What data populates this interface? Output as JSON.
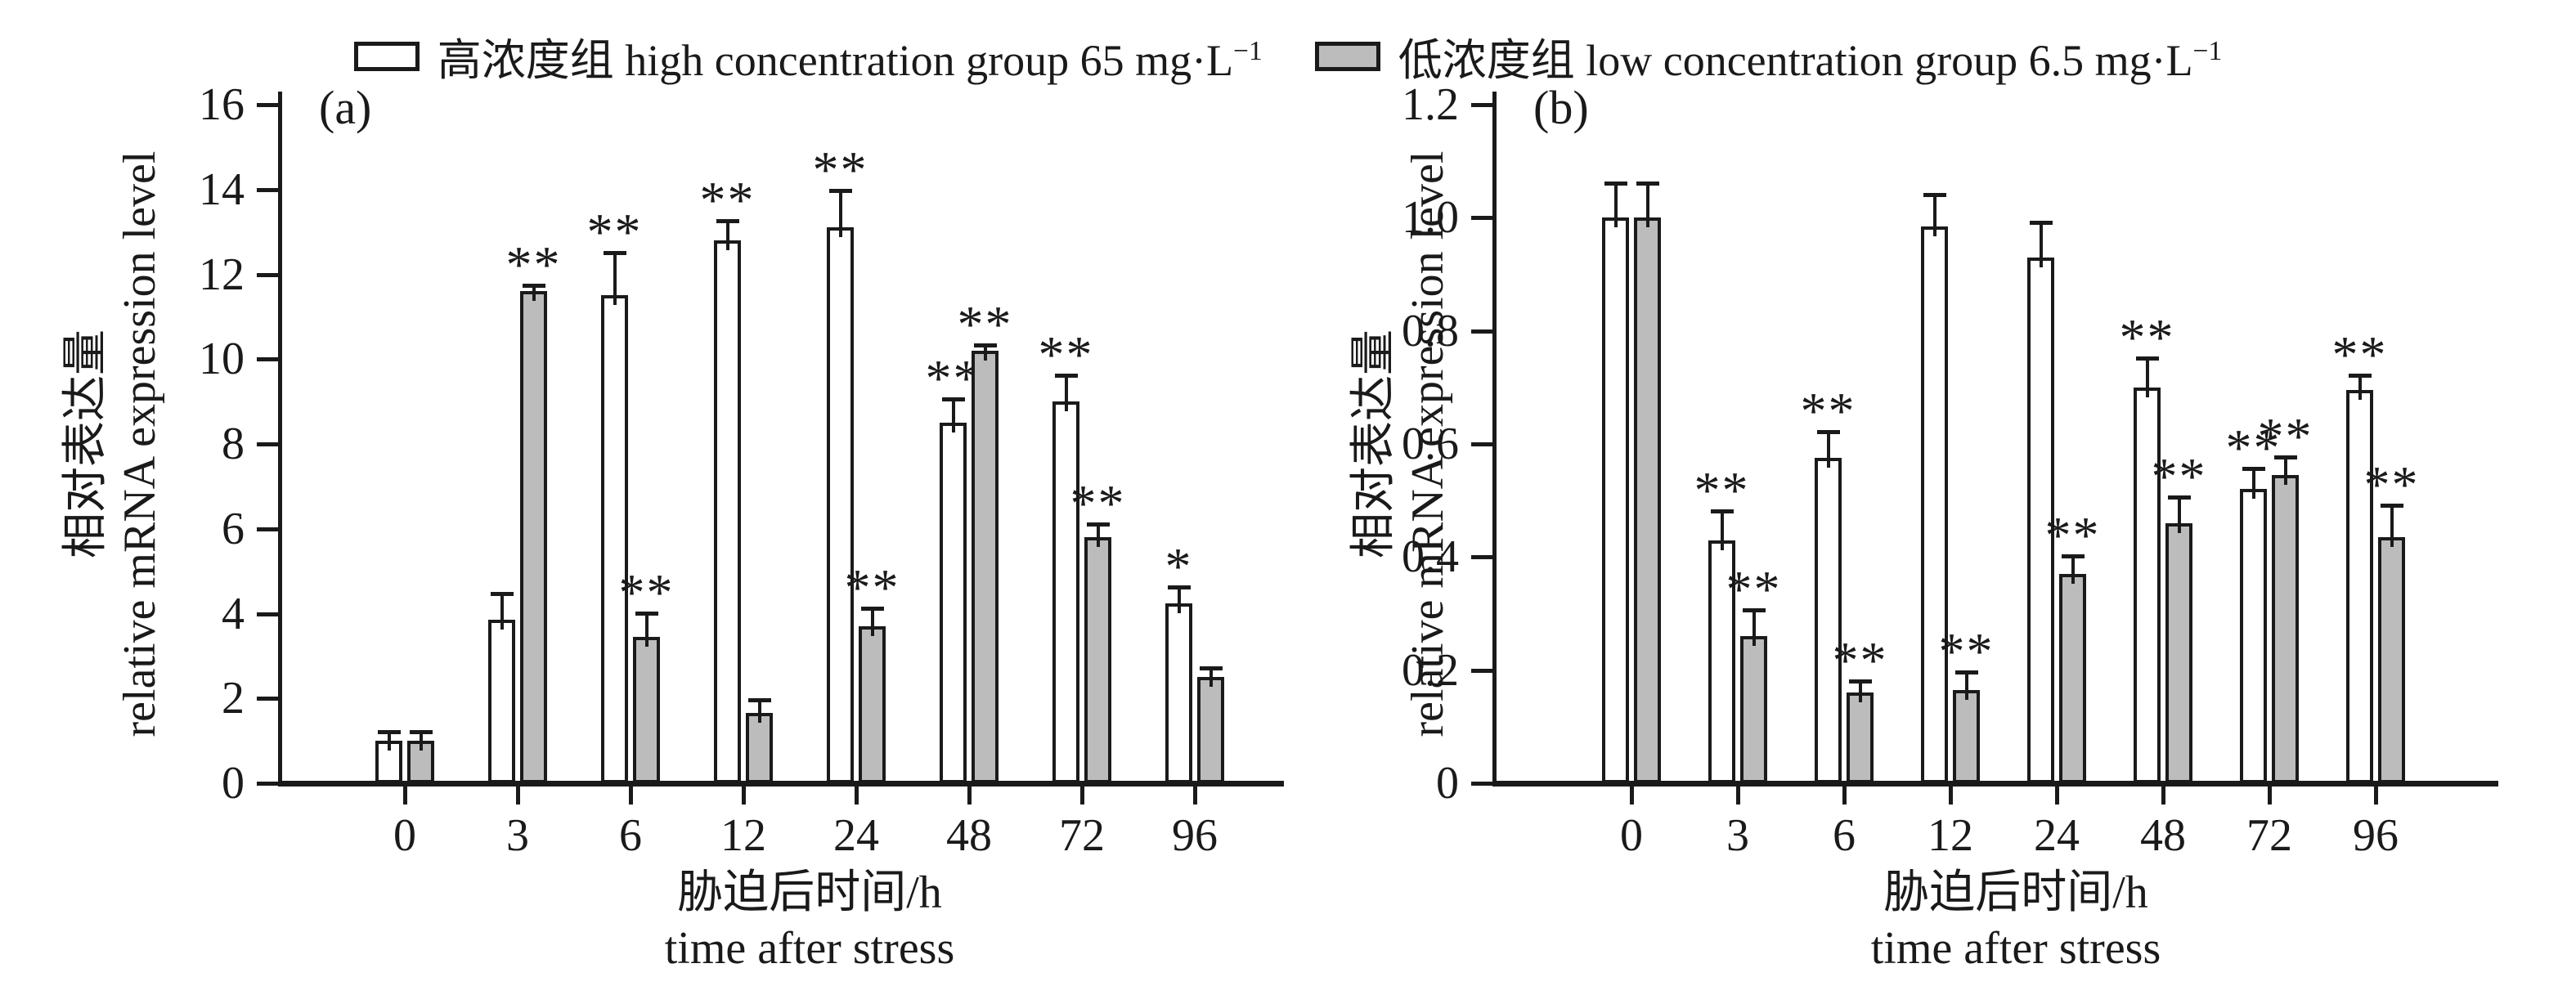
{
  "legend": [
    {
      "label": "高浓度组 high concentration group 65 mg·L",
      "sup": "−1",
      "color": "#ffffff"
    },
    {
      "label": "低浓度组 low concentration group 6.5 mg·L",
      "sup": "−1",
      "color": "#bcbcbc"
    }
  ],
  "chart_data": [
    {
      "type": "bar",
      "panel_label": "(a)",
      "ylabel_zh": "相对表达量",
      "ylabel_en": "relative mRNA expression level",
      "xlabel_zh": "胁迫后时间/h",
      "xlabel_en": "time after stress",
      "categories": [
        "0",
        "3",
        "6",
        "12",
        "24",
        "48",
        "72",
        "96"
      ],
      "ylim": [
        0,
        16
      ],
      "ytick_labels": [
        "0",
        "2",
        "4",
        "6",
        "8",
        "10",
        "12",
        "14",
        "16"
      ],
      "grid": false,
      "legend_position": "top-center",
      "series": [
        {
          "name": "高浓度组 high concentration group 65 mg·L−1",
          "key": "high",
          "color": "#ffffff",
          "values": [
            1.0,
            3.85,
            11.5,
            12.8,
            13.1,
            8.5,
            9.0,
            4.25
          ],
          "errors": [
            0.2,
            0.6,
            1.0,
            0.45,
            0.85,
            0.55,
            0.6,
            0.35
          ],
          "sig": [
            "",
            "",
            "**",
            "**",
            "**",
            "**",
            "**",
            "*"
          ]
        },
        {
          "name": "低浓度组 low concentration group 6.5 mg·L−1",
          "key": "low",
          "color": "#bcbcbc",
          "values": [
            1.0,
            11.6,
            3.45,
            1.65,
            3.7,
            10.2,
            5.8,
            2.5
          ],
          "errors": [
            0.2,
            0.12,
            0.55,
            0.3,
            0.4,
            0.12,
            0.3,
            0.2
          ],
          "sig": [
            "",
            "**",
            "**",
            "",
            "**",
            "**",
            "**",
            ""
          ]
        }
      ]
    },
    {
      "type": "bar",
      "panel_label": "(b)",
      "ylabel_zh": "相对表达量",
      "ylabel_en": "relative mRNA expression level",
      "xlabel_zh": "胁迫后时间/h",
      "xlabel_en": "time after stress",
      "categories": [
        "0",
        "3",
        "6",
        "12",
        "24",
        "48",
        "72",
        "96"
      ],
      "ylim": [
        0,
        1.2
      ],
      "ytick_labels": [
        "0",
        "0.2",
        "0.4",
        "0.6",
        "0.8",
        "1.0",
        "1.2"
      ],
      "grid": false,
      "legend_position": "top-center",
      "series": [
        {
          "name": "高浓度组 high concentration group 65 mg·L−1",
          "key": "high",
          "color": "#ffffff",
          "values": [
            1.0,
            0.43,
            0.575,
            0.985,
            0.93,
            0.7,
            0.52,
            0.695
          ],
          "errors": [
            0.06,
            0.05,
            0.045,
            0.055,
            0.06,
            0.05,
            0.035,
            0.025
          ],
          "sig": [
            "",
            "**",
            "**",
            "",
            "",
            "**",
            "**",
            "**"
          ]
        },
        {
          "name": "低浓度组 low concentration group 6.5 mg·L−1",
          "key": "low",
          "color": "#bcbcbc",
          "values": [
            1.0,
            0.26,
            0.16,
            0.165,
            0.37,
            0.46,
            0.545,
            0.435
          ],
          "errors": [
            0.06,
            0.045,
            0.02,
            0.03,
            0.03,
            0.045,
            0.03,
            0.055
          ],
          "sig": [
            "",
            "**",
            "**",
            "**",
            "**",
            "**",
            "**",
            "**"
          ]
        }
      ]
    }
  ]
}
